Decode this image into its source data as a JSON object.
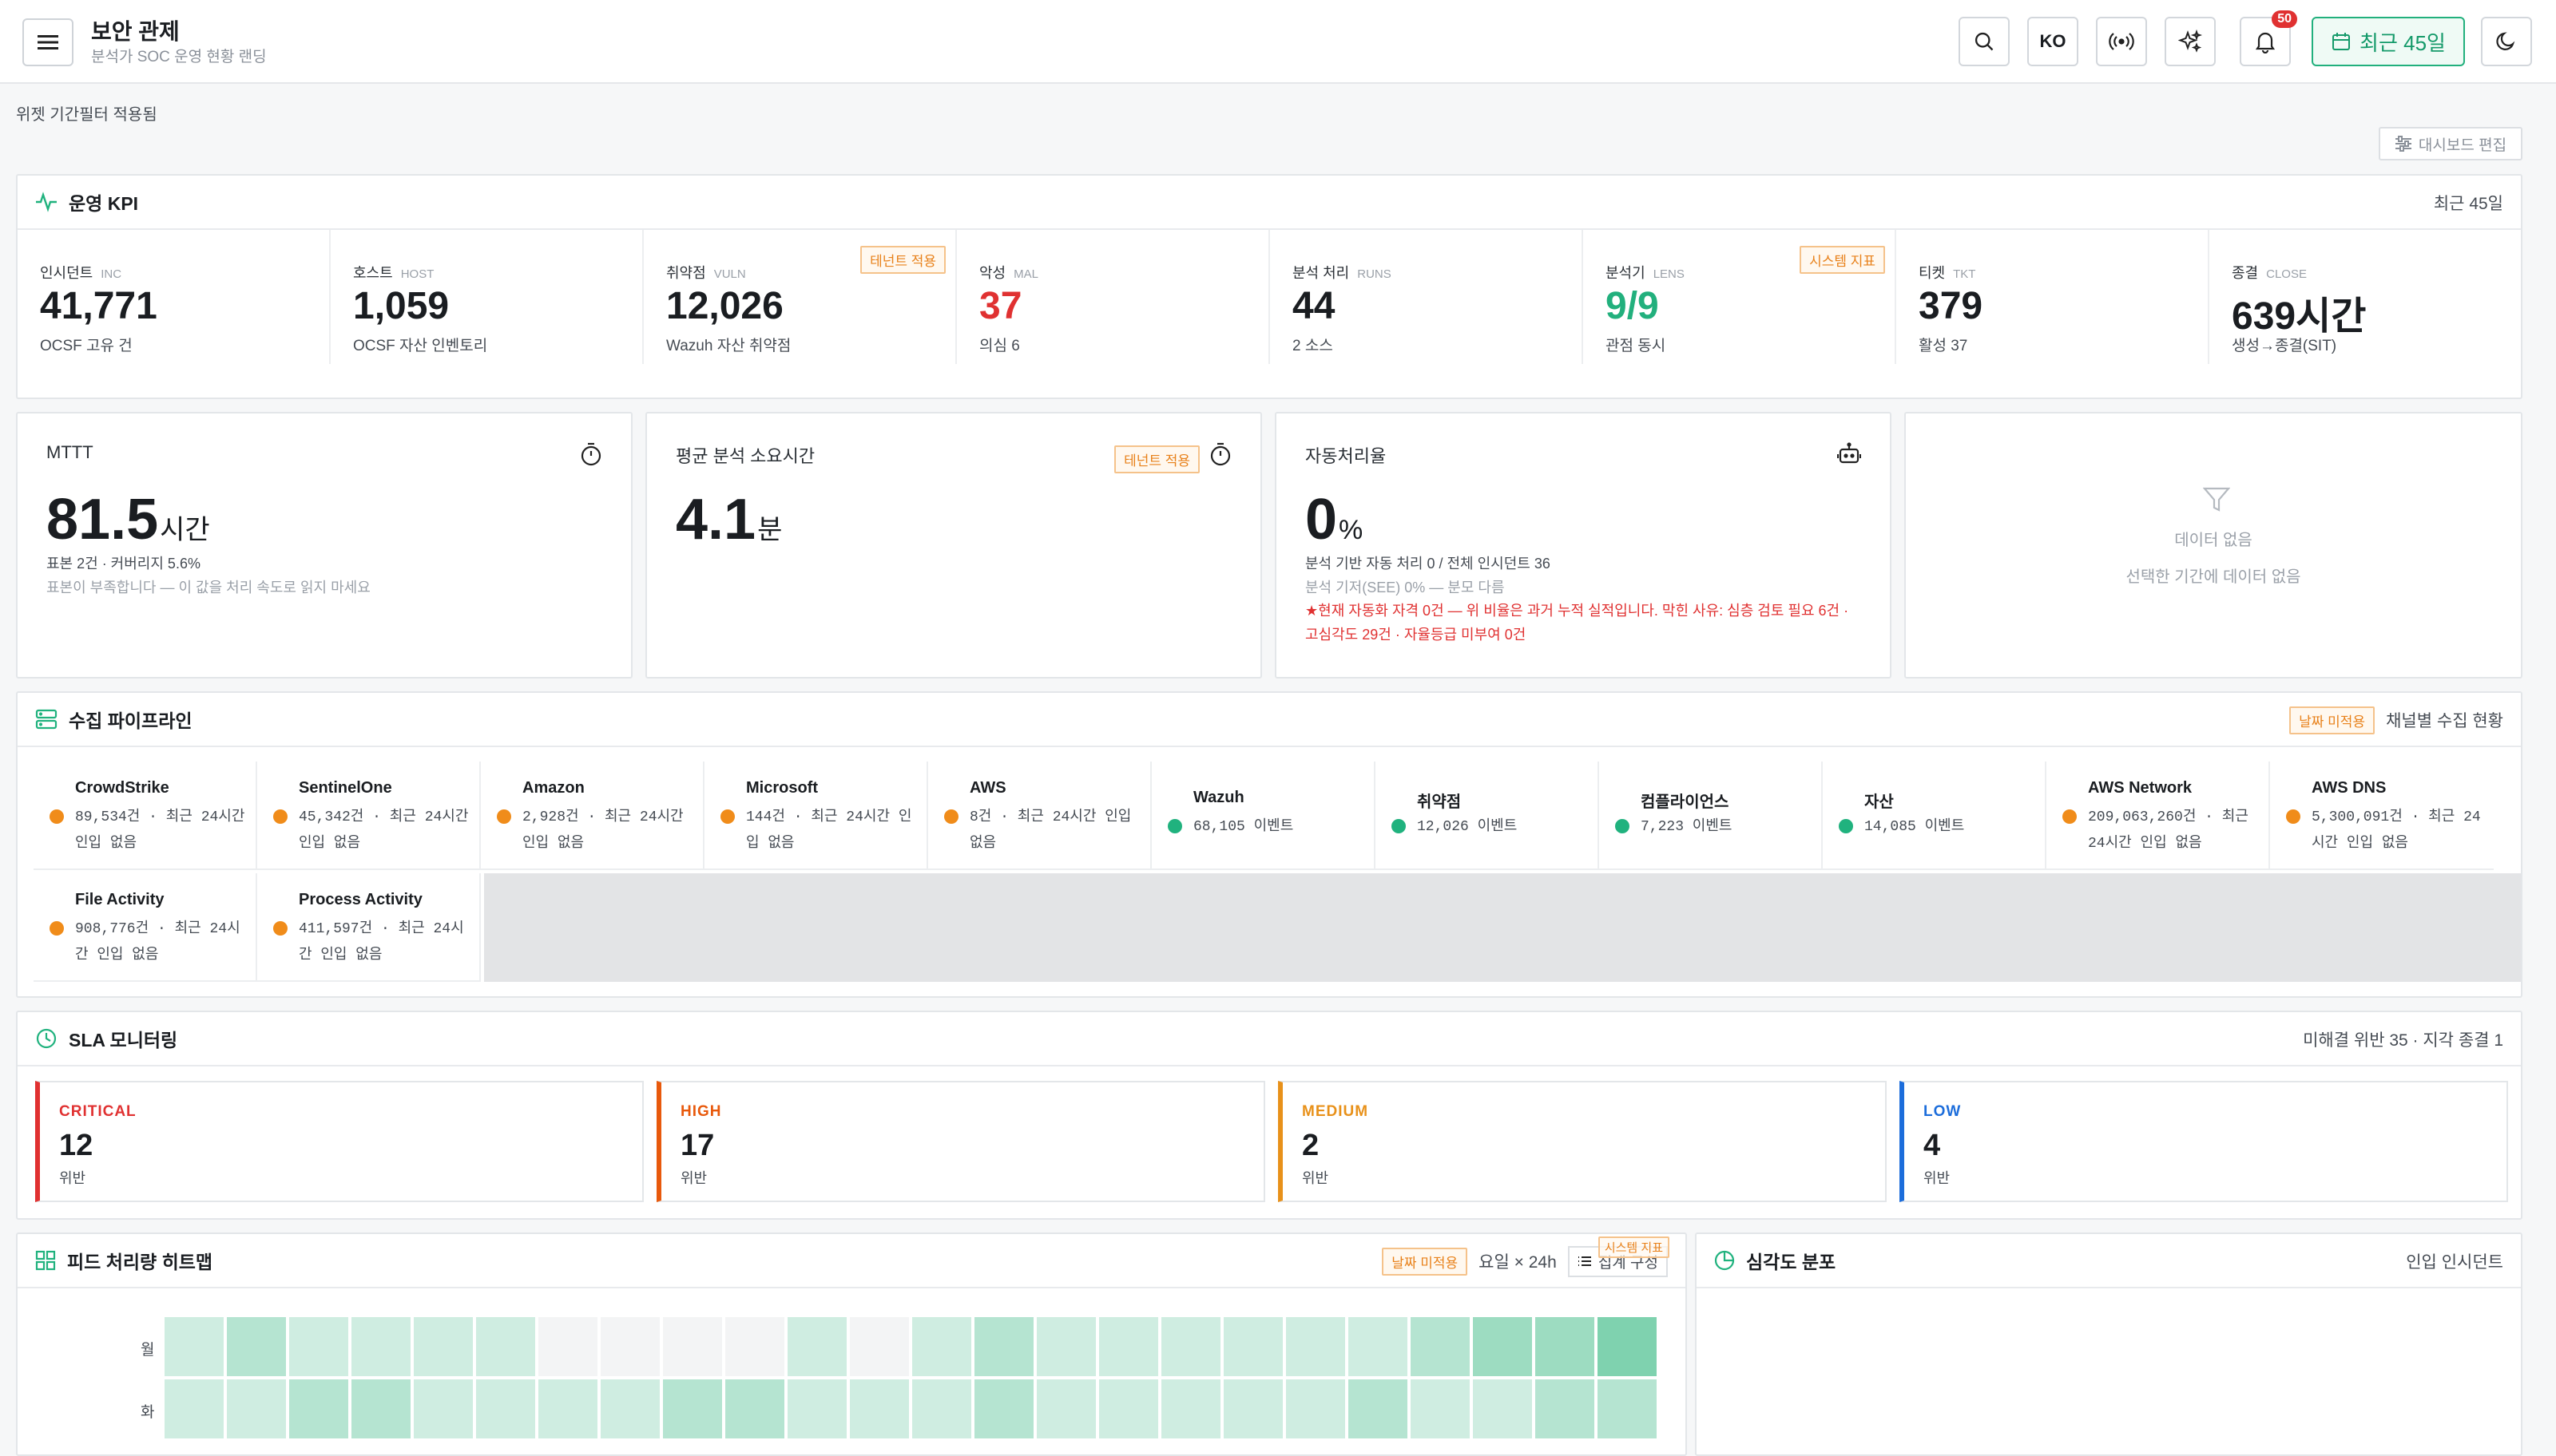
{
  "header": {
    "title": "보안 관제",
    "subtitle": "분석가 SOC 운영 현황 랜딩",
    "lang": "KO",
    "notif_count": "50",
    "range_label": "최근 45일"
  },
  "filter_note": "위젯 기간필터 적용됨",
  "edit_dashboard": "대시보드 편집",
  "kpi_section": {
    "title": "운영 KPI",
    "range": "최근 45일",
    "items": [
      {
        "label": "인시던트",
        "en": "INC",
        "value": "41,771",
        "sub": "OCSF 고유 건",
        "tag": "",
        "color": "#1a1d21"
      },
      {
        "label": "호스트",
        "en": "HOST",
        "value": "1,059",
        "sub": "OCSF 자산 인벤토리",
        "tag": "",
        "color": "#1a1d21"
      },
      {
        "label": "취약점",
        "en": "VULN",
        "value": "12,026",
        "sub": "Wazuh 자산 취약점",
        "tag": "테넌트 적용",
        "color": "#1a1d21"
      },
      {
        "label": "악성",
        "en": "MAL",
        "value": "37",
        "sub": "의심 6",
        "tag": "",
        "color": "#e03131"
      },
      {
        "label": "분석 처리",
        "en": "RUNS",
        "value": "44",
        "sub": "2 소스",
        "tag": "",
        "color": "#1a1d21"
      },
      {
        "label": "분석기",
        "en": "LENS",
        "value": "9/9",
        "sub": "관점 동시",
        "tag": "시스템 지표",
        "color": "#22b07d"
      },
      {
        "label": "티켓",
        "en": "TKT",
        "value": "379",
        "sub": "활성 37",
        "tag": "",
        "color": "#1a1d21"
      },
      {
        "label": "종결",
        "en": "CLOSE",
        "value": "639시간",
        "sub": "생성→종결(SIT)",
        "tag": "",
        "color": "#1a1d21"
      }
    ]
  },
  "mttt": {
    "label": "MTTT",
    "value": "81.5",
    "unit": "시간",
    "line1": "표본 2건 · 커버리지 5.6%",
    "line2": "표본이 부족합니다 — 이 값을 처리 속도로 읽지 마세요"
  },
  "avg_analysis": {
    "label": "평균 분석 소요시간",
    "tag": "테넌트 적용",
    "value": "4.1",
    "unit": "분"
  },
  "auto_rate": {
    "label": "자동처리율",
    "value": "0",
    "unit": "%",
    "line1": "분석 기반 자동 처리 0 / 전체 인시던트 36",
    "line2": "분석 기저(SEE) 0% — 분모 다름",
    "warning": "★현재 자동화 자격 0건 — 위 비율은 과거 누적 실적입니다. 막힌 사유: 심층 검토 필요 6건 · 고심각도 29건 · 자율등급 미부여 0건"
  },
  "empty_card": {
    "title": "데이터 없음",
    "desc": "선택한 기간에 데이터 없음"
  },
  "pipeline": {
    "title": "수집 파이프라인",
    "tag": "날짜 미적용",
    "right": "채널별 수집 현황",
    "channels": [
      {
        "name": "CrowdStrike",
        "detail": "89,534건 · 최근 24시간 인입 없음",
        "status": "warn"
      },
      {
        "name": "SentinelOne",
        "detail": "45,342건 · 최근 24시간 인입 없음",
        "status": "warn"
      },
      {
        "name": "Amazon",
        "detail": "2,928건 · 최근 24시간 인입 없음",
        "status": "warn"
      },
      {
        "name": "Microsoft",
        "detail": "144건 · 최근 24시간 인입 없음",
        "status": "warn"
      },
      {
        "name": "AWS",
        "detail": "8건 · 최근 24시간 인입 없음",
        "status": "warn"
      },
      {
        "name": "Wazuh",
        "detail": "68,105 이벤트",
        "status": "ok"
      },
      {
        "name": "취약점",
        "detail": "12,026 이벤트",
        "status": "ok"
      },
      {
        "name": "컴플라이언스",
        "detail": "7,223 이벤트",
        "status": "ok"
      },
      {
        "name": "자산",
        "detail": "14,085 이벤트",
        "status": "ok"
      },
      {
        "name": "AWS Network",
        "detail": "209,063,260건 · 최근 24시간 인입 없음",
        "status": "warn"
      },
      {
        "name": "AWS DNS",
        "detail": "5,300,091건 · 최근 24시간 인입 없음",
        "status": "warn"
      },
      {
        "name": "File Activity",
        "detail": "908,776건 · 최근 24시간 인입 없음",
        "status": "warn"
      },
      {
        "name": "Process Activity",
        "detail": "411,597건 · 최근 24시간 인입 없음",
        "status": "warn"
      }
    ],
    "status_colors": {
      "warn": "#f08c1a",
      "ok": "#20b27e"
    }
  },
  "sla": {
    "title": "SLA 모니터링",
    "summary": "미해결 위반 35 · 지각 종결 1",
    "items": [
      {
        "priority": "CRITICAL",
        "count": "12",
        "label": "위반",
        "color": "#e03131"
      },
      {
        "priority": "HIGH",
        "count": "17",
        "label": "위반",
        "color": "#e8590c"
      },
      {
        "priority": "MEDIUM",
        "count": "2",
        "label": "위반",
        "color": "#e8911a"
      },
      {
        "priority": "LOW",
        "count": "4",
        "label": "위반",
        "color": "#1c6ddb"
      }
    ]
  },
  "heatmap": {
    "title": "피드 처리량 히트맵",
    "tag": "날짜 미적용",
    "dims": "요일 × 24h",
    "button": "집계 구성",
    "tag2": "시스템 지표",
    "days": [
      "월",
      "화"
    ],
    "levels": [
      [
        1,
        2,
        1,
        1,
        1,
        1,
        0,
        0,
        0,
        0,
        1,
        0,
        1,
        2,
        1,
        1,
        1,
        1,
        1,
        1,
        2,
        3,
        3,
        4
      ],
      [
        1,
        1,
        2,
        2,
        1,
        1,
        1,
        1,
        2,
        2,
        1,
        1,
        1,
        2,
        1,
        1,
        1,
        1,
        1,
        2,
        1,
        1,
        2,
        2
      ]
    ],
    "palette": [
      "#f3f4f5",
      "#cfede1",
      "#b5e4d1",
      "#9ddcc1",
      "#7fd2af"
    ]
  },
  "severity": {
    "title": "심각도 분포",
    "right": "인입 인시던트"
  }
}
